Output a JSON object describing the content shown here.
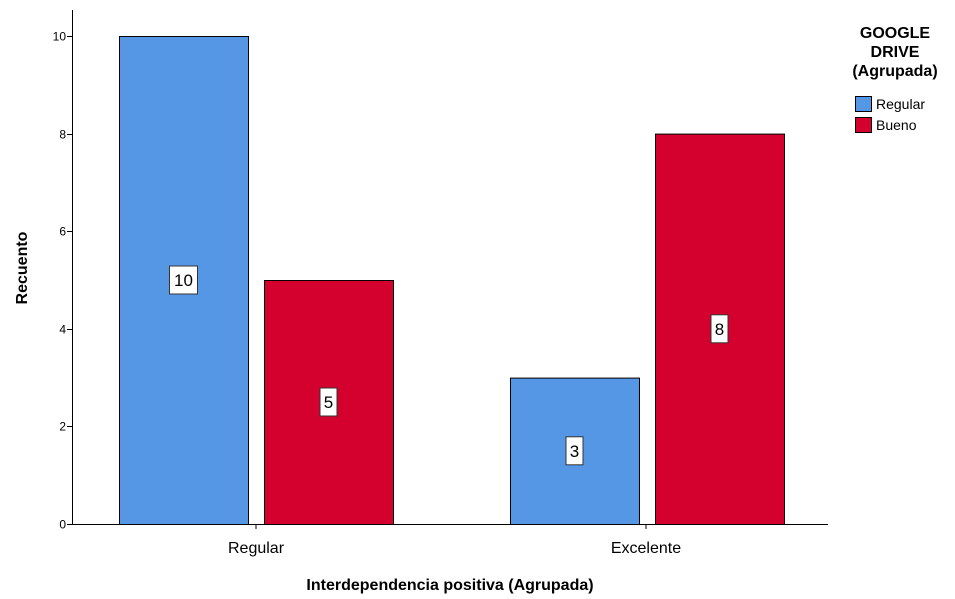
{
  "chart_data": {
    "type": "bar",
    "categories": [
      "Regular",
      "Excelente"
    ],
    "series": [
      {
        "name": "Regular",
        "values": [
          10,
          3
        ],
        "color": "#5597e4"
      },
      {
        "name": "Bueno",
        "values": [
          5,
          8
        ],
        "color": "#d4002e"
      }
    ],
    "xlabel": "Interdependencia positiva (Agrupada)",
    "ylabel": "Recuento",
    "ylim": [
      0,
      10.5
    ],
    "yticks": [
      0,
      2,
      4,
      6,
      8,
      10
    ],
    "legend": {
      "title_lines": [
        "GOOGLE",
        "DRIVE",
        "(Agrupada)"
      ],
      "placement": "top-right"
    },
    "grid": false
  }
}
